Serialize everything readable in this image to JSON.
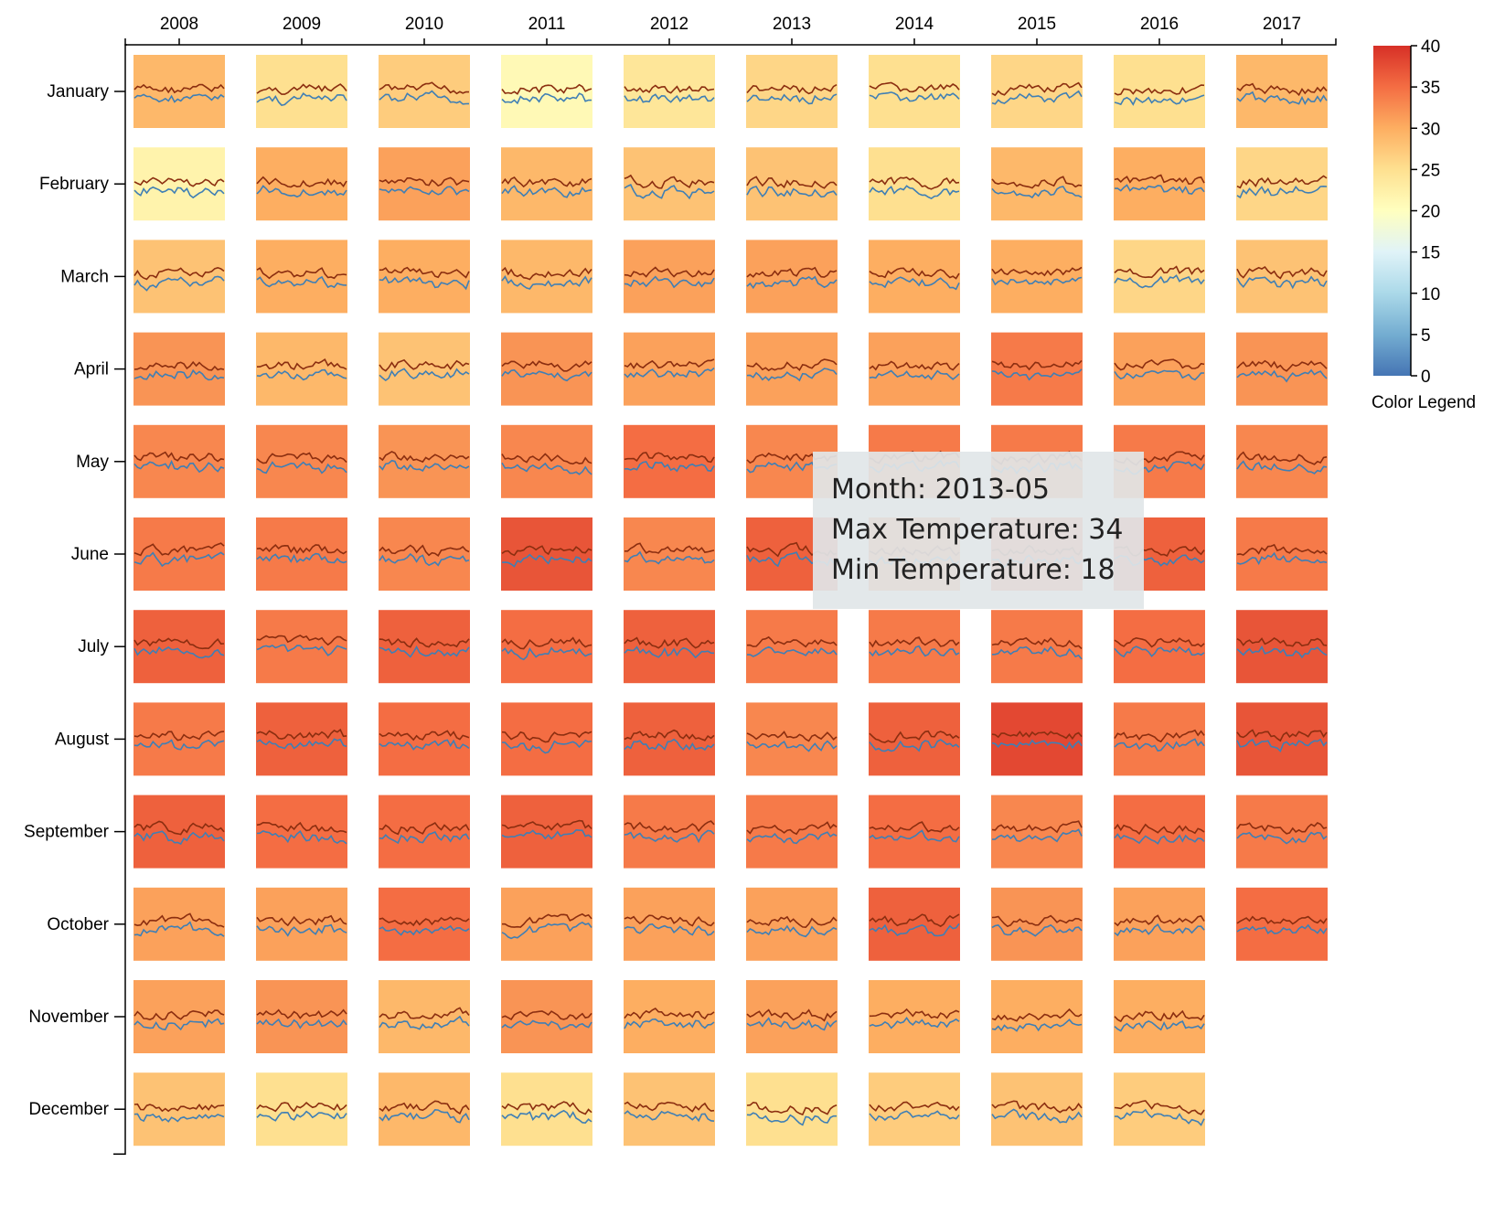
{
  "chart_data": {
    "type": "heatmap",
    "subtype": "calendar-heatmap-with-sparklines",
    "x_categories": [
      "2008",
      "2009",
      "2010",
      "2011",
      "2012",
      "2013",
      "2014",
      "2015",
      "2016",
      "2017"
    ],
    "y_categories": [
      "January",
      "February",
      "March",
      "April",
      "May",
      "June",
      "July",
      "August",
      "September",
      "October",
      "November",
      "December"
    ],
    "cell_value": "average temperature",
    "sparkline_series": [
      {
        "color": "#8b2e10"
      },
      {
        "color": "#3f7fb5"
      }
    ],
    "values": [
      [
        29,
        25,
        27,
        21,
        24,
        26,
        25,
        26,
        25,
        29
      ],
      [
        22,
        30,
        31,
        29,
        28,
        28,
        25,
        29,
        30,
        26
      ],
      [
        28,
        30,
        30,
        29,
        31,
        31,
        30,
        30,
        26,
        28
      ],
      [
        32,
        29,
        28,
        32,
        31,
        31,
        31,
        34,
        31,
        32
      ],
      [
        33,
        33,
        32,
        33,
        35,
        33,
        34,
        34,
        34,
        33
      ],
      [
        34,
        34,
        33,
        37,
        33,
        36,
        34,
        35,
        36,
        34
      ],
      [
        36,
        34,
        36,
        35,
        36,
        34,
        34,
        34,
        35,
        37
      ],
      [
        34,
        36,
        35,
        35,
        36,
        33,
        36,
        38,
        34,
        37
      ],
      [
        36,
        35,
        35,
        36,
        34,
        34,
        35,
        33,
        35,
        34
      ],
      [
        31,
        31,
        35,
        31,
        31,
        31,
        36,
        32,
        31,
        35
      ],
      [
        31,
        32,
        29,
        32,
        30,
        31,
        30,
        30,
        30,
        null
      ],
      [
        28,
        25,
        29,
        25,
        28,
        25,
        27,
        28,
        27,
        null
      ]
    ],
    "color_scale": {
      "domain": [
        0,
        40
      ],
      "ticks": [
        0,
        5,
        10,
        15,
        20,
        25,
        30,
        35,
        40
      ],
      "stops": [
        "#4575b4",
        "#74add1",
        "#abd9e9",
        "#e0f3f8",
        "#ffffbf",
        "#fee090",
        "#fdae61",
        "#f46d43",
        "#d73027"
      ],
      "title": "Color Legend"
    },
    "tooltip": {
      "month_label": "Month: 2013-05",
      "max_label": "Max Temperature: 34",
      "min_label": "Min Temperature: 18"
    }
  }
}
